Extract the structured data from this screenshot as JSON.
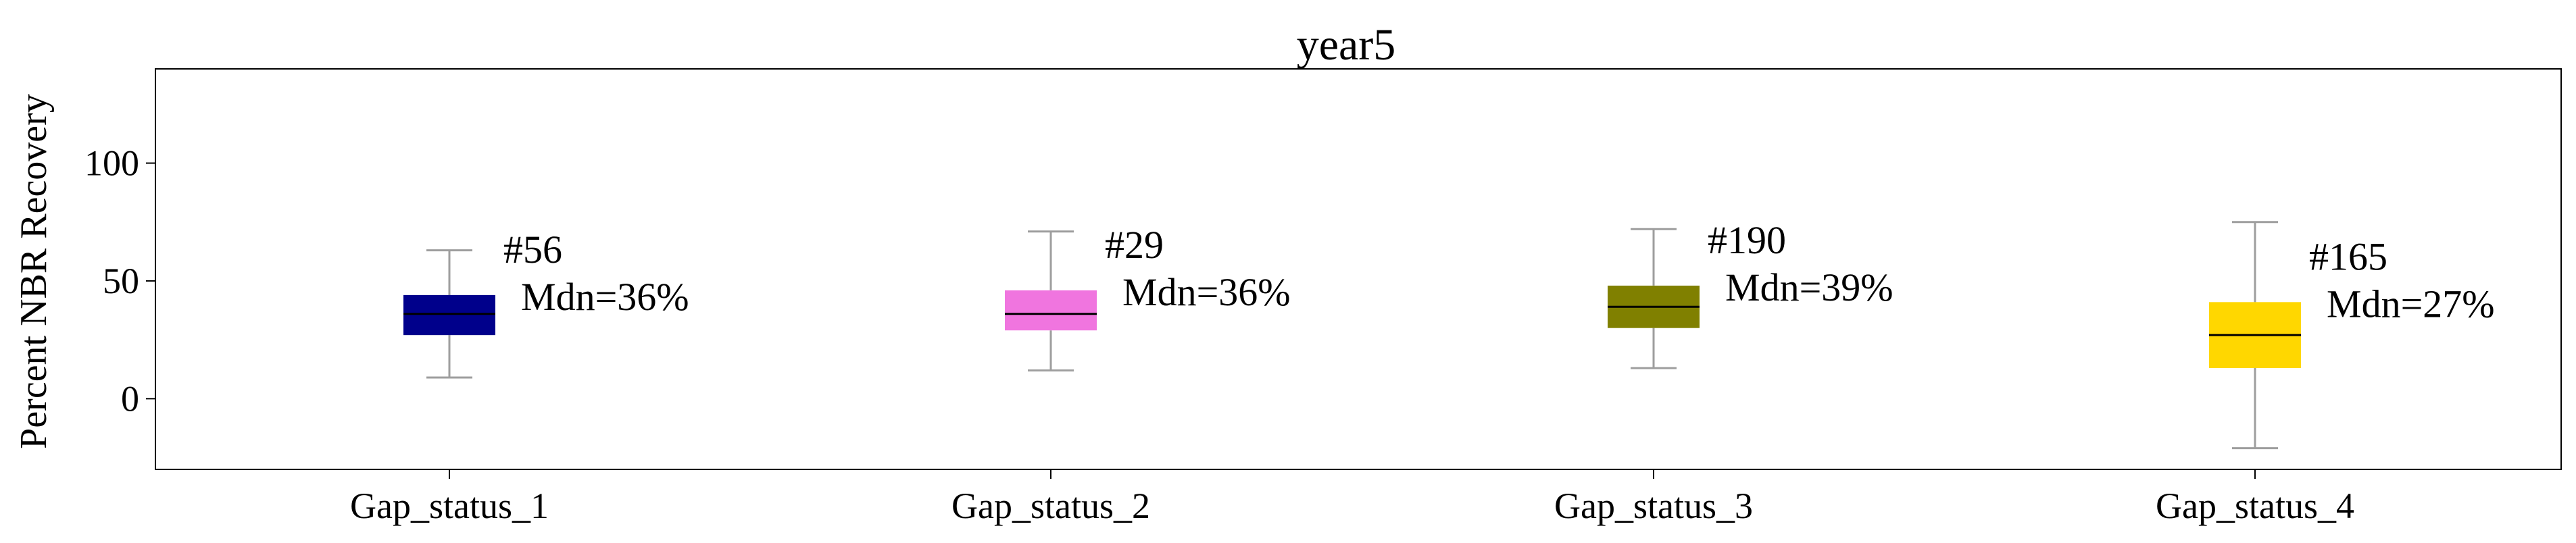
{
  "chart_data": {
    "type": "box",
    "title": "year5",
    "xlabel": "",
    "ylabel": "Percent NBR Recovery",
    "ylim": [
      -30,
      140
    ],
    "yticks": [
      0,
      50,
      100
    ],
    "grid": false,
    "legend": "none",
    "categories": [
      "Gap_status_1",
      "Gap_status_2",
      "Gap_status_3",
      "Gap_status_4"
    ],
    "boxes": [
      {
        "category": "Gap_status_1",
        "whisker_low": 9,
        "q1": 27,
        "median": 36,
        "q3": 44,
        "whisker_high": 63,
        "color": "#00008b",
        "count_label": "#56",
        "median_label": "Mdn=36%"
      },
      {
        "category": "Gap_status_2",
        "whisker_low": 12,
        "q1": 29,
        "median": 36,
        "q3": 46,
        "whisker_high": 71,
        "color": "#f075df",
        "count_label": "#29",
        "median_label": "Mdn=36%"
      },
      {
        "category": "Gap_status_3",
        "whisker_low": 13,
        "q1": 30,
        "median": 39,
        "q3": 48,
        "whisker_high": 72,
        "color": "#808000",
        "count_label": "#190",
        "median_label": "Mdn=39%"
      },
      {
        "category": "Gap_status_4",
        "whisker_low": -21,
        "q1": 13,
        "median": 27,
        "q3": 41,
        "whisker_high": 75,
        "color": "#ffd700",
        "count_label": "#165",
        "median_label": "Mdn=27%"
      }
    ]
  }
}
